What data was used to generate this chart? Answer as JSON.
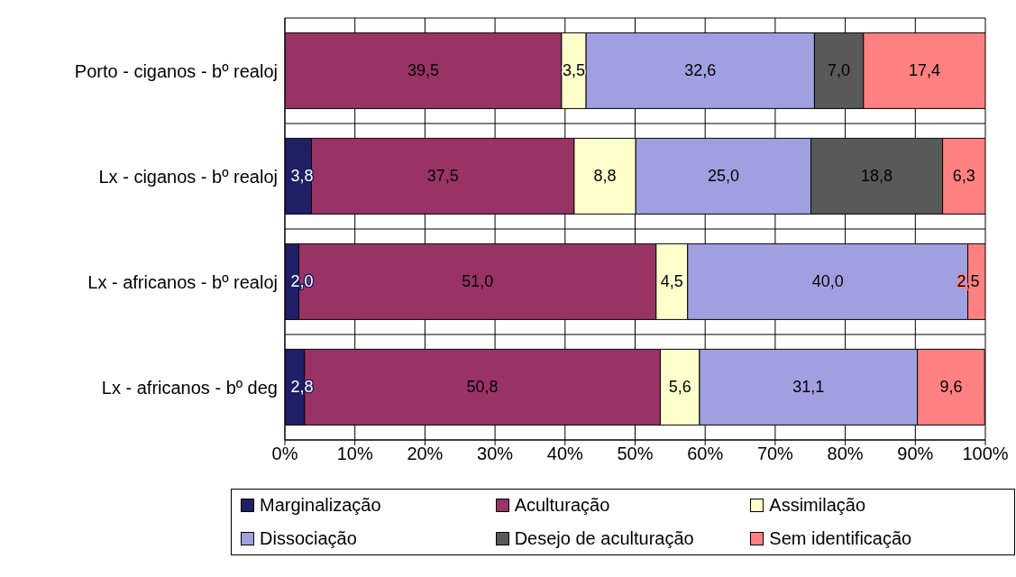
{
  "chart_data": {
    "type": "bar",
    "orientation": "horizontal",
    "stacked": true,
    "categories": [
      "Porto - ciganos - bº realoj",
      "Lx - ciganos - bº realoj",
      "Lx - africanos - bº realoj",
      "Lx - africanos - bº deg"
    ],
    "series": [
      {
        "name": "Marginalização",
        "color": "#1f1f66",
        "values": [
          null,
          3.8,
          2.0,
          2.8
        ],
        "value_labels": [
          null,
          "3,8",
          "2,0",
          "2,8"
        ]
      },
      {
        "name": "Aculturação",
        "color": "#993366",
        "values": [
          39.5,
          37.5,
          51.0,
          50.8
        ],
        "value_labels": [
          "39,5",
          "37,5",
          "51,0",
          "50,8"
        ]
      },
      {
        "name": "Assimilação",
        "color": "#ffffcc",
        "values": [
          3.5,
          8.8,
          4.5,
          5.6
        ],
        "value_labels": [
          "3,5",
          "8,8",
          "4,5",
          "5,6"
        ]
      },
      {
        "name": "Dissociação",
        "color": "#a0a0e0",
        "values": [
          32.6,
          25.0,
          40.0,
          31.1
        ],
        "value_labels": [
          "32,6",
          "25,0",
          "40,0",
          "31,1"
        ]
      },
      {
        "name": "Desejo de aculturação",
        "color": "#595959",
        "values": [
          7.0,
          18.8,
          null,
          null
        ],
        "value_labels": [
          "7,0",
          "18,8",
          null,
          null
        ]
      },
      {
        "name": "Sem identificação",
        "color": "#ff8080",
        "values": [
          17.4,
          6.3,
          2.5,
          9.6
        ],
        "value_labels": [
          "17,4",
          "6,3",
          "2,5",
          "9,6"
        ]
      }
    ],
    "xlim": [
      0,
      100
    ],
    "xticks": [
      {
        "value": 0,
        "label": "0%"
      },
      {
        "value": 10,
        "label": "10%"
      },
      {
        "value": 20,
        "label": "20%"
      },
      {
        "value": 30,
        "label": "30%"
      },
      {
        "value": 40,
        "label": "40%"
      },
      {
        "value": 50,
        "label": "50%"
      },
      {
        "value": 60,
        "label": "60%"
      },
      {
        "value": 70,
        "label": "70%"
      },
      {
        "value": 80,
        "label": "80%"
      },
      {
        "value": 90,
        "label": "90%"
      },
      {
        "value": 100,
        "label": "100%"
      }
    ],
    "grid": true,
    "legend": "bottom"
  }
}
